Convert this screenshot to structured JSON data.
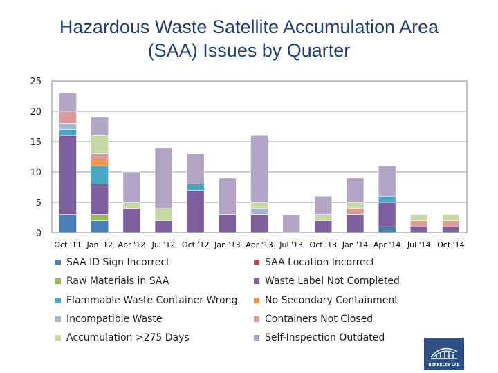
{
  "title_line1": "Hazardous Waste Satellite Accumulation Area",
  "title_line2": "(SAA) Issues by Quarter",
  "colors": {
    "saa_id": "#4a7ebb",
    "saa_location": "#be4b48",
    "raw_materials": "#98b954",
    "waste_label": "#7d5fa0",
    "flammable": "#46aac5",
    "secondary": "#f69546",
    "incompatible": "#a5b6d9",
    "containers": "#dc9a98",
    "accumulation": "#c6d9a3",
    "self_inspection": "#b3a5c6",
    "title": "#1f3d7a",
    "logo_bg": "#2c4f86"
  },
  "chart_data": {
    "type": "stacked-bar",
    "title": "Hazardous Waste Satellite Accumulation Area (SAA) Issues by Quarter",
    "xlabel": "",
    "ylabel": "",
    "ylim": [
      0,
      25
    ],
    "yticks": [
      0,
      5,
      10,
      15,
      20,
      25
    ],
    "grid": true,
    "legend_position": "bottom",
    "categories": [
      "Oct '11",
      "Jan '12",
      "Apr '12",
      "Jul '12",
      "Oct '12",
      "Jan '13",
      "Apr '13",
      "Jul '13",
      "Oct '13",
      "Jan '14",
      "Apr '14",
      "Jul '14",
      "Oct '14"
    ],
    "series": [
      {
        "key": "saa_id",
        "name": "SAA ID Sign Incorrect",
        "values": [
          3,
          2,
          0,
          0,
          0,
          0,
          0,
          0,
          0,
          0,
          1,
          0,
          0
        ]
      },
      {
        "key": "saa_location",
        "name": "SAA Location Incorrect",
        "values": [
          0,
          0,
          0,
          0,
          0,
          0,
          0,
          0,
          0,
          0,
          0,
          0,
          0
        ]
      },
      {
        "key": "raw_materials",
        "name": "Raw Materials in SAA",
        "values": [
          0,
          1,
          0,
          0,
          0,
          0,
          0,
          0,
          0,
          0,
          0,
          0,
          0
        ]
      },
      {
        "key": "waste_label",
        "name": "Waste Label Not Completed",
        "values": [
          13,
          5,
          4,
          2,
          7,
          3,
          3,
          0,
          2,
          3,
          4,
          1,
          1
        ]
      },
      {
        "key": "flammable",
        "name": "Flammable Waste Container Wrong",
        "values": [
          1,
          3,
          0,
          0,
          1,
          0,
          0,
          0,
          0,
          0,
          1,
          0,
          0
        ]
      },
      {
        "key": "secondary",
        "name": "No Secondary Containment",
        "values": [
          0,
          1,
          0,
          0,
          0,
          0,
          0,
          0,
          0,
          0,
          0,
          0,
          0
        ]
      },
      {
        "key": "incompatible",
        "name": "Incompatible Waste",
        "values": [
          1,
          0,
          0,
          0,
          0,
          0,
          1,
          0,
          0,
          0,
          0,
          0,
          0
        ]
      },
      {
        "key": "containers",
        "name": "Containers Not Closed",
        "values": [
          2,
          1,
          0,
          0,
          0,
          0,
          0,
          0,
          0,
          1,
          0,
          1,
          1
        ]
      },
      {
        "key": "accumulation",
        "name": "Accumulation >275 Days",
        "values": [
          0,
          3,
          1,
          2,
          0,
          0,
          1,
          0,
          1,
          1,
          0,
          1,
          1
        ]
      },
      {
        "key": "self_inspection",
        "name": "Self-Inspection Outdated",
        "values": [
          3,
          3,
          5,
          10,
          5,
          6,
          11,
          3,
          3,
          4,
          5,
          0,
          0
        ]
      }
    ]
  },
  "legend": [
    {
      "key": "saa_id",
      "label": "SAA ID Sign Incorrect"
    },
    {
      "key": "saa_location",
      "label": "SAA Location Incorrect"
    },
    {
      "key": "raw_materials",
      "label": "Raw Materials in SAA"
    },
    {
      "key": "waste_label",
      "label": "Waste Label Not Completed"
    },
    {
      "key": "flammable",
      "label": "Flammable Waste Container Wrong"
    },
    {
      "key": "secondary",
      "label": "No Secondary Containment"
    },
    {
      "key": "incompatible",
      "label": "Incompatible Waste"
    },
    {
      "key": "containers",
      "label": "Containers Not Closed"
    },
    {
      "key": "accumulation",
      "label": "Accumulation >275 Days"
    },
    {
      "key": "self_inspection",
      "label": "Self-Inspection Outdated"
    }
  ],
  "logo_text": "BERKELEY LAB"
}
